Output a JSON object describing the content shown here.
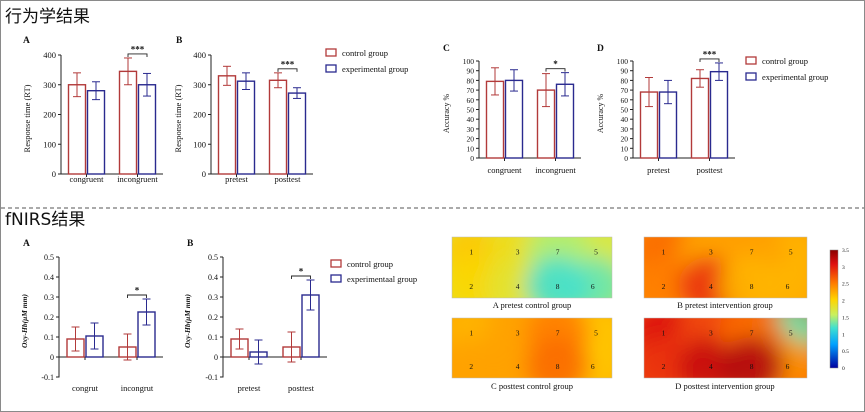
{
  "section_titles": {
    "behavior": "行为学结果",
    "fnirs": "fNIRS结果"
  },
  "colors": {
    "control": "#b23a3a",
    "experimental": "#2a2a8f",
    "axis": "#222222",
    "text": "#111111"
  },
  "chart_data": [
    {
      "id": "behA",
      "panel_label": "A",
      "type": "bar",
      "ylabel": "Response time (RT)",
      "ylim": [
        0,
        400
      ],
      "yticks": [
        "0",
        "100",
        "200",
        "300",
        "400"
      ],
      "ytick_values": [
        0,
        100,
        200,
        300,
        400
      ],
      "categories": [
        "congruent",
        "incongruent"
      ],
      "series": [
        {
          "name": "control group",
          "values": [
            300,
            345
          ],
          "errors": [
            40,
            45
          ]
        },
        {
          "name": "experimental group",
          "values": [
            280,
            300
          ],
          "errors": [
            30,
            38
          ]
        }
      ],
      "significance": [
        {
          "category": "incongruent",
          "label": "***"
        }
      ]
    },
    {
      "id": "behB",
      "panel_label": "B",
      "type": "bar",
      "ylabel": "Response time (RT)",
      "ylim": [
        0,
        400
      ],
      "yticks": [
        "0",
        "100",
        "200",
        "300",
        "400"
      ],
      "ytick_values": [
        0,
        100,
        200,
        300,
        400
      ],
      "categories": [
        "pretest",
        "posttest"
      ],
      "series": [
        {
          "name": "control group",
          "values": [
            330,
            315
          ],
          "errors": [
            32,
            25
          ]
        },
        {
          "name": "experimental group",
          "values": [
            312,
            272
          ],
          "errors": [
            28,
            18
          ]
        }
      ],
      "significance": [
        {
          "category": "posttest",
          "label": "***"
        }
      ],
      "legend": {
        "placement": "right",
        "entries": [
          "control group",
          "experimental group"
        ]
      }
    },
    {
      "id": "behC",
      "panel_label": "C",
      "type": "bar",
      "ylabel": "Accuracy %",
      "ylim": [
        0,
        100
      ],
      "yticks": [
        "0",
        "10",
        "20",
        "30",
        "40",
        "50",
        "60",
        "70",
        "80",
        "90",
        "100"
      ],
      "ytick_values": [
        0,
        10,
        20,
        30,
        40,
        50,
        60,
        70,
        80,
        90,
        100
      ],
      "categories": [
        "congruent",
        "incongruent"
      ],
      "series": [
        {
          "name": "control group",
          "values": [
            79,
            70
          ],
          "errors": [
            14,
            17
          ]
        },
        {
          "name": "experimental group",
          "values": [
            80,
            76
          ],
          "errors": [
            11,
            12
          ]
        }
      ],
      "significance": [
        {
          "category": "incongruent",
          "label": "*"
        }
      ]
    },
    {
      "id": "behD",
      "panel_label": "D",
      "type": "bar",
      "ylabel": "Accuracy %",
      "ylim": [
        0,
        100
      ],
      "yticks": [
        "0",
        "10",
        "20",
        "30",
        "40",
        "50",
        "60",
        "70",
        "80",
        "90",
        "100"
      ],
      "ytick_values": [
        0,
        10,
        20,
        30,
        40,
        50,
        60,
        70,
        80,
        90,
        100
      ],
      "categories": [
        "pretest",
        "posttest"
      ],
      "series": [
        {
          "name": "control group",
          "values": [
            68,
            82
          ],
          "errors": [
            15,
            9
          ]
        },
        {
          "name": "experimental group",
          "values": [
            68,
            89
          ],
          "errors": [
            12,
            9
          ]
        }
      ],
      "significance": [
        {
          "category": "posttest",
          "label": "***"
        }
      ],
      "legend": {
        "placement": "right",
        "entries": [
          "control group",
          "experimental group"
        ]
      }
    },
    {
      "id": "fA",
      "panel_label": "A",
      "type": "bar",
      "ylabel": "Oxy-Hb(μM mm)",
      "ylim": [
        -0.1,
        0.5
      ],
      "yticks": [
        "-0.1",
        "0",
        "0.1",
        "0.2",
        "0.3",
        "0.4",
        "0.5"
      ],
      "ytick_values": [
        -0.1,
        0,
        0.1,
        0.2,
        0.3,
        0.4,
        0.5
      ],
      "categories": [
        "congrut",
        "incongrut"
      ],
      "series": [
        {
          "name": "control group",
          "values": [
            0.09,
            0.05
          ],
          "errors": [
            0.06,
            0.065
          ]
        },
        {
          "name": "experimental group",
          "values": [
            0.105,
            0.225
          ],
          "errors": [
            0.065,
            0.065
          ]
        }
      ],
      "significance": [
        {
          "category": "incongrut",
          "label": "*"
        }
      ]
    },
    {
      "id": "fB",
      "panel_label": "B",
      "type": "bar",
      "ylabel": "Oxy-Hb(μM mm)",
      "ylim": [
        -0.1,
        0.5
      ],
      "yticks": [
        "-0.1",
        "0",
        "0.1",
        "0.2",
        "0.3",
        "0.4",
        "0.5"
      ],
      "ytick_values": [
        -0.1,
        0,
        0.1,
        0.2,
        0.3,
        0.4,
        0.5
      ],
      "categories": [
        "pretest",
        "posttest"
      ],
      "series": [
        {
          "name": "control group",
          "values": [
            0.09,
            0.05
          ],
          "errors": [
            0.05,
            0.075
          ]
        },
        {
          "name": "experimental group",
          "values": [
            0.025,
            0.31
          ],
          "errors": [
            0.06,
            0.075
          ]
        }
      ],
      "significance": [
        {
          "category": "posttest",
          "label": "*"
        }
      ],
      "legend": {
        "placement": "right",
        "entries": [
          "control group",
          "experimentaal group"
        ]
      }
    }
  ],
  "heatmaps": {
    "type": "heatmap",
    "colorbar": {
      "min": 0,
      "max": 3.5,
      "ticks": [
        "3.5",
        "3",
        "2.5",
        "2",
        "1.5",
        "1",
        "0.5",
        "0"
      ],
      "tick_values": [
        3.5,
        3,
        2.5,
        2,
        1.5,
        1,
        0.5,
        0
      ]
    },
    "channels": [
      "1",
      "2",
      "3",
      "4",
      "5",
      "6",
      "7",
      "8"
    ],
    "maps": [
      {
        "caption": "A pretest control group",
        "channel_values": [
          2.1,
          2.0,
          1.9,
          1.8,
          1.7,
          1.3,
          1.5,
          1.2
        ]
      },
      {
        "caption": "B pretest intervention group",
        "channel_values": [
          2.6,
          2.5,
          2.3,
          2.9,
          2.2,
          2.2,
          2.3,
          2.2
        ]
      },
      {
        "caption": "C posttest control group",
        "channel_values": [
          2.2,
          2.3,
          2.3,
          2.3,
          2.1,
          2.1,
          2.5,
          2.6
        ]
      },
      {
        "caption": "D posttest intervention group",
        "channel_values": [
          3.1,
          2.9,
          2.8,
          3.2,
          1.3,
          2.4,
          2.6,
          3.3
        ]
      }
    ]
  }
}
